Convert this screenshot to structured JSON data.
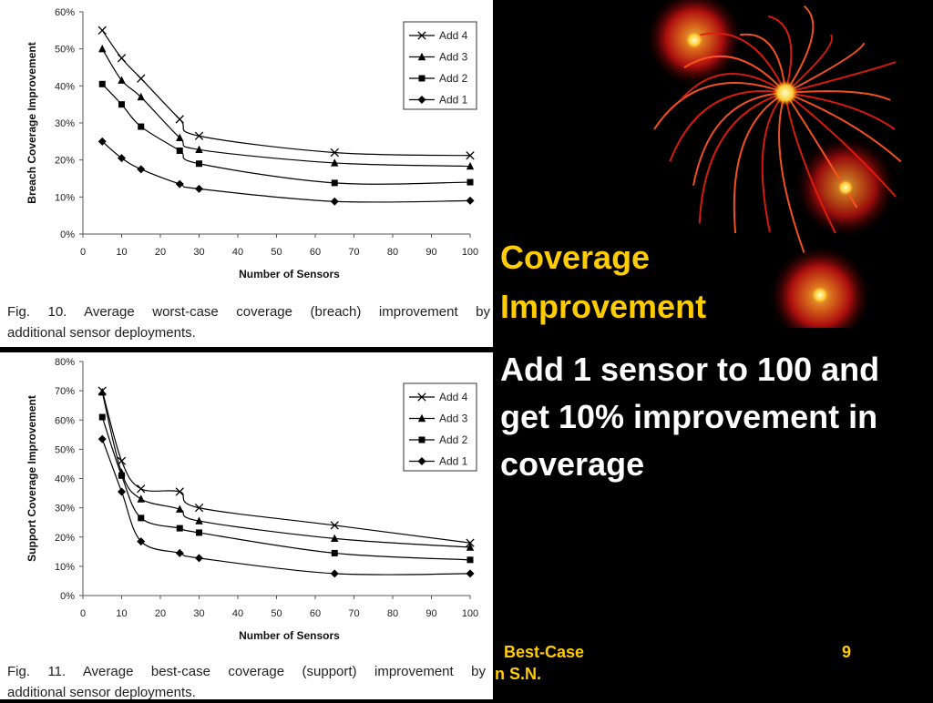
{
  "slide": {
    "title_line1": "Coverage",
    "title_line2": "Improvement",
    "body": "Add 1 sensor to 100 and get 10% improvement in coverage",
    "footer_line1": "Best-Case",
    "footer_line2": "n S.N.",
    "page_number": "9",
    "title_color": "#ffcc00",
    "background": "#000000"
  },
  "chart_data": [
    {
      "type": "line",
      "xlabel": "Number of Sensors",
      "ylabel": "Breach Coverage Improvement",
      "xlim": [
        0,
        100
      ],
      "ylim": [
        0,
        60
      ],
      "xticks": [
        0,
        10,
        20,
        30,
        40,
        50,
        60,
        70,
        80,
        90,
        100
      ],
      "xtick_labels": [
        "0",
        "10",
        "20",
        "30",
        "40",
        "50",
        "60",
        "70",
        "80",
        "90",
        "100"
      ],
      "ytick_labels": [
        "0%",
        "10%",
        "20%",
        "30%",
        "40%",
        "50%",
        "60%"
      ],
      "yticks": [
        0,
        10,
        20,
        30,
        40,
        50,
        60
      ],
      "x": [
        5,
        10,
        15,
        25,
        30,
        65,
        100
      ],
      "legend": "top-right",
      "grid": false,
      "series": [
        {
          "name": "Add 4",
          "marker": "x",
          "values": [
            55,
            47.5,
            42,
            31,
            26.5,
            22,
            21.2
          ]
        },
        {
          "name": "Add 3",
          "marker": "triangle",
          "values": [
            50,
            41.5,
            37,
            26,
            22.8,
            19.2,
            18.3
          ]
        },
        {
          "name": "Add 2",
          "marker": "square",
          "values": [
            40.5,
            35,
            29,
            22.5,
            19,
            13.8,
            14
          ]
        },
        {
          "name": "Add 1",
          "marker": "diamond",
          "values": [
            25,
            20.5,
            17.5,
            13.5,
            12.2,
            8.8,
            9
          ]
        }
      ],
      "caption_line1": "Fig. 10. Average worst-case coverage (breach) improvement by",
      "caption_line2": "additional sensor deployments."
    },
    {
      "type": "line",
      "xlabel": "Number of Sensors",
      "ylabel": "Support Coverage Improvement",
      "xlim": [
        0,
        100
      ],
      "ylim": [
        0,
        80
      ],
      "xticks": [
        0,
        10,
        20,
        30,
        40,
        50,
        60,
        70,
        80,
        90,
        100
      ],
      "xtick_labels": [
        "0",
        "10",
        "20",
        "30",
        "40",
        "50",
        "60",
        "70",
        "80",
        "90",
        "100"
      ],
      "ytick_labels": [
        "0%",
        "10%",
        "20%",
        "30%",
        "40%",
        "50%",
        "60%",
        "70%",
        "80%"
      ],
      "yticks": [
        0,
        10,
        20,
        30,
        40,
        50,
        60,
        70,
        80
      ],
      "x": [
        5,
        10,
        15,
        25,
        30,
        65,
        100
      ],
      "legend": "top-right",
      "grid": false,
      "series": [
        {
          "name": "Add 4",
          "marker": "x",
          "values": [
            70,
            46,
            36.5,
            35.5,
            30,
            24,
            18
          ]
        },
        {
          "name": "Add 3",
          "marker": "triangle",
          "values": [
            69.5,
            42,
            33,
            29.5,
            25.5,
            19.5,
            16.5
          ]
        },
        {
          "name": "Add 2",
          "marker": "square",
          "values": [
            61,
            41,
            26.5,
            23,
            21.5,
            14.5,
            12.2
          ]
        },
        {
          "name": "Add 1",
          "marker": "diamond",
          "values": [
            53.5,
            35.5,
            18.5,
            14.5,
            12.8,
            7.5,
            7.5
          ]
        }
      ],
      "caption_line1": "Fig. 11. Average best-case coverage (support) improvement by",
      "caption_line2": "additional sensor deployments."
    }
  ]
}
